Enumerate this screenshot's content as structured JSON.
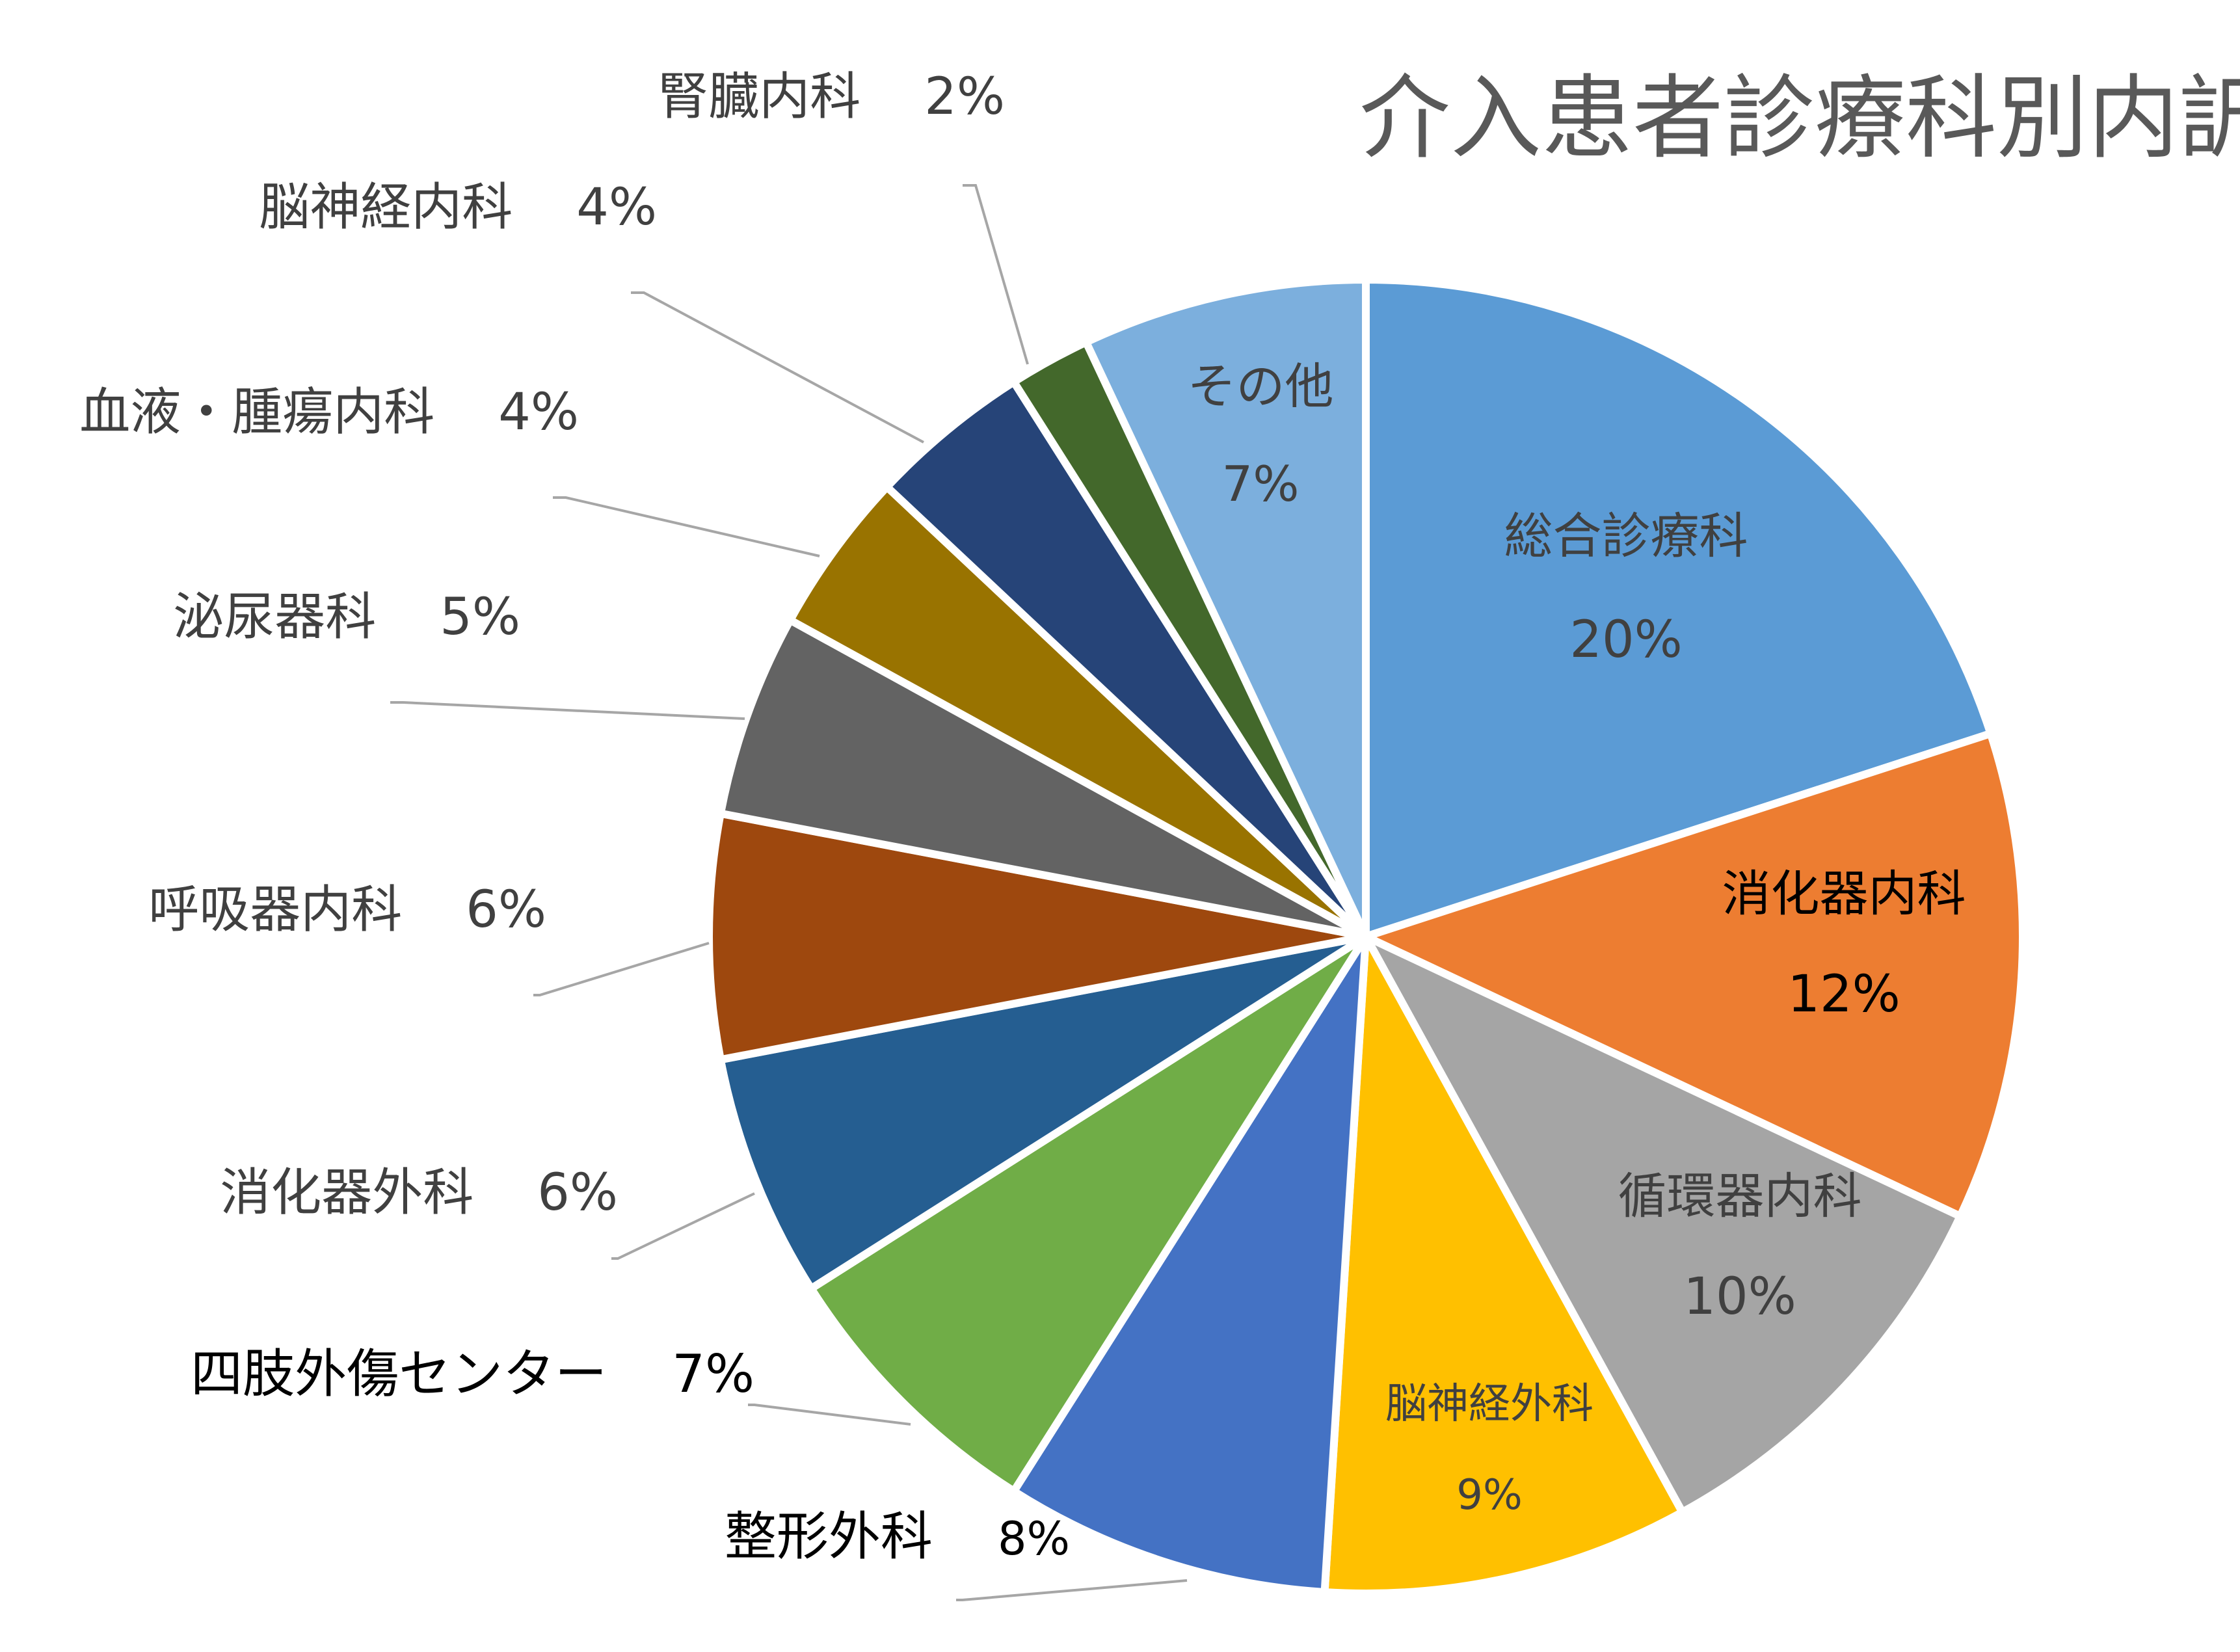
{
  "chart_data": {
    "type": "pie",
    "title": "介入患者診療科別内訳",
    "slices": [
      {
        "label": "総合診療科",
        "value": 20,
        "value_label": "20%",
        "color": "#5b9bd5",
        "label_style": "inside",
        "label_color": "#404040"
      },
      {
        "label": "消化器内科",
        "value": 12,
        "value_label": "12%",
        "color": "#ed7d31",
        "label_style": "inside",
        "label_color": "#000000"
      },
      {
        "label": "循環器内科",
        "value": 10,
        "value_label": "10%",
        "color": "#a5a5a5",
        "label_style": "inside",
        "label_color": "#404040"
      },
      {
        "label": "脳神経外科",
        "value": 9,
        "value_label": "9%",
        "color": "#ffc000",
        "label_style": "inside",
        "label_color": "#404040"
      },
      {
        "label": "整形外科",
        "value": 8,
        "value_label": "8%",
        "color": "#4472c4",
        "label_style": "outside",
        "label_color": "#000000"
      },
      {
        "label": "四肢外傷センター",
        "value": 7,
        "value_label": "7%",
        "color": "#70ad47",
        "label_style": "outside",
        "label_color": "#000000"
      },
      {
        "label": "消化器外科",
        "value": 6,
        "value_label": "6%",
        "color": "#255e91",
        "label_style": "outside",
        "label_color": "#404040"
      },
      {
        "label": "呼吸器内科",
        "value": 6,
        "value_label": "6%",
        "color": "#9e480e",
        "label_style": "outside",
        "label_color": "#404040"
      },
      {
        "label": "泌尿器科",
        "value": 5,
        "value_label": "5%",
        "color": "#636363",
        "label_style": "outside",
        "label_color": "#404040"
      },
      {
        "label": "血液・腫瘍内科",
        "value": 4,
        "value_label": "4%",
        "color": "#997300",
        "label_style": "outside",
        "label_color": "#404040"
      },
      {
        "label": "脳神経内科",
        "value": 4,
        "value_label": "4%",
        "color": "#264478",
        "label_style": "outside",
        "label_color": "#404040"
      },
      {
        "label": "腎臓内科",
        "value": 2,
        "value_label": "2%",
        "color": "#43682b",
        "label_style": "outside",
        "label_color": "#404040"
      },
      {
        "label": "その他",
        "value": 7,
        "value_label": "7%",
        "color": "#7cafdd",
        "label_style": "inside",
        "label_color": "#404040"
      }
    ],
    "legend": "none",
    "label_mode": "category and percentage"
  }
}
